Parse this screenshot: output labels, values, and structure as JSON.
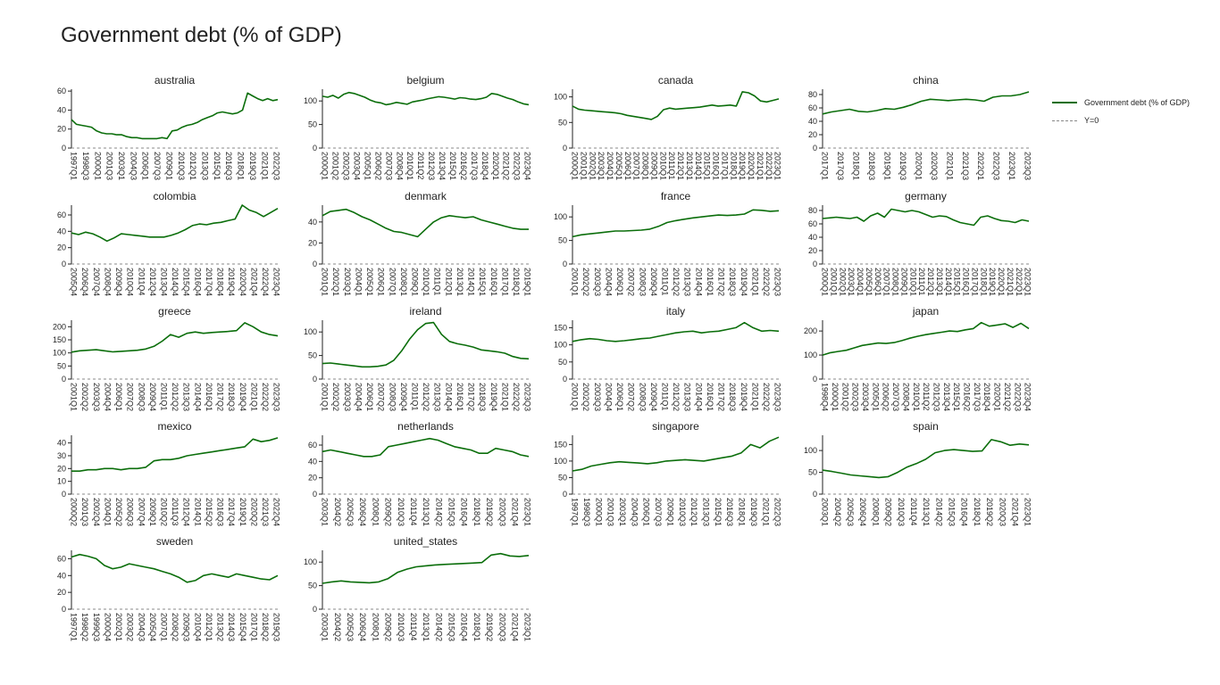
{
  "title": "Government debt (% of GDP)",
  "legend": {
    "series_label": "Government debt (% of GDP)",
    "zero_label": "Y=0"
  },
  "colors": {
    "series": "#0b6e0b",
    "zero_line": "#888888",
    "axis": "#222222"
  },
  "chart_data": {
    "type": "line",
    "layout": "small-multiples",
    "legend_position": "right",
    "grid": false,
    "panels": [
      {
        "name": "australia",
        "yticks": [
          0,
          20,
          40,
          60
        ],
        "ylim": [
          0,
          62
        ],
        "xticks": [
          "1997Q1",
          "1998Q3",
          "2000Q1",
          "2001Q3",
          "2003Q1",
          "2004Q3",
          "2006Q1",
          "2007Q3",
          "2009Q1",
          "2010Q3",
          "2012Q1",
          "2013Q3",
          "2015Q1",
          "2016Q3",
          "2018Q1",
          "2019Q3",
          "2021Q1",
          "2022Q3"
        ],
        "values": [
          30,
          25,
          24,
          23,
          22,
          18,
          16,
          15,
          15,
          14,
          14,
          12,
          11,
          11,
          10,
          10,
          10,
          10,
          11,
          10,
          18,
          19,
          22,
          24,
          25,
          27,
          30,
          32,
          34,
          37,
          38,
          37,
          36,
          37,
          40,
          58,
          55,
          52,
          50,
          52,
          50,
          51
        ]
      },
      {
        "name": "belgium",
        "yticks": [
          0,
          50,
          100
        ],
        "ylim": [
          0,
          125
        ],
        "xticks": [
          "2000Q1",
          "2001Q2",
          "2002Q3",
          "2003Q4",
          "2005Q1",
          "2006Q2",
          "2007Q3",
          "2008Q4",
          "2010Q1",
          "2011Q2",
          "2012Q3",
          "2013Q4",
          "2015Q1",
          "2016Q2",
          "2017Q3",
          "2018Q4",
          "2020Q1",
          "2021Q2",
          "2022Q3",
          "2023Q4"
        ],
        "values": [
          110,
          108,
          112,
          106,
          114,
          118,
          116,
          112,
          108,
          102,
          98,
          96,
          92,
          94,
          97,
          95,
          93,
          98,
          100,
          102,
          105,
          107,
          109,
          108,
          106,
          104,
          107,
          106,
          104,
          103,
          105,
          108,
          116,
          114,
          110,
          106,
          103,
          98,
          94,
          92
        ]
      },
      {
        "name": "canada",
        "yticks": [
          0,
          50,
          100
        ],
        "ylim": [
          0,
          115
        ],
        "xticks": [
          "2000Q1",
          "2001Q1",
          "2002Q1",
          "2003Q1",
          "2004Q1",
          "2005Q1",
          "2006Q1",
          "2007Q1",
          "2008Q1",
          "2009Q1",
          "2010Q1",
          "2011Q1",
          "2012Q1",
          "2013Q1",
          "2014Q1",
          "2015Q1",
          "2016Q1",
          "2017Q1",
          "2018Q1",
          "2019Q1",
          "2020Q1",
          "2021Q1",
          "2022Q1",
          "2023Q1"
        ],
        "values": [
          82,
          76,
          74,
          73,
          72,
          71,
          70,
          69,
          67,
          64,
          62,
          60,
          58,
          56,
          62,
          75,
          78,
          76,
          77,
          78,
          79,
          80,
          82,
          84,
          82,
          83,
          84,
          82,
          110,
          108,
          102,
          92,
          90,
          93,
          96
        ]
      },
      {
        "name": "china",
        "yticks": [
          0,
          20,
          40,
          60,
          80
        ],
        "ylim": [
          0,
          88
        ],
        "xticks": [
          "2017Q1",
          "2017Q3",
          "2018Q1",
          "2018Q3",
          "2019Q1",
          "2019Q3",
          "2020Q1",
          "2020Q3",
          "2021Q1",
          "2021Q3",
          "2022Q1",
          "2022Q3",
          "2023Q1",
          "2023Q3"
        ],
        "values": [
          51,
          54,
          56,
          58,
          55,
          54,
          56,
          59,
          58,
          61,
          65,
          70,
          73,
          72,
          71,
          72,
          73,
          72,
          70,
          76,
          78,
          78,
          80,
          84
        ]
      },
      {
        "name": "colombia",
        "yticks": [
          0,
          20,
          40,
          60
        ],
        "ylim": [
          0,
          72
        ],
        "xticks": [
          "2005Q4",
          "2006Q4",
          "2007Q4",
          "2008Q4",
          "2009Q4",
          "2010Q4",
          "2011Q4",
          "2012Q4",
          "2013Q4",
          "2014Q4",
          "2015Q4",
          "2016Q4",
          "2017Q4",
          "2018Q4",
          "2019Q4",
          "2020Q4",
          "2021Q4",
          "2022Q4",
          "2023Q4"
        ],
        "values": [
          38,
          36,
          39,
          37,
          33,
          28,
          32,
          37,
          36,
          35,
          34,
          33,
          33,
          33,
          35,
          38,
          42,
          47,
          49,
          48,
          50,
          51,
          53,
          55,
          72,
          66,
          63,
          58,
          63,
          68
        ]
      },
      {
        "name": "denmark",
        "yticks": [
          0,
          20,
          40
        ],
        "ylim": [
          0,
          56
        ],
        "xticks": [
          "2001Q1",
          "2002Q1",
          "2003Q1",
          "2004Q1",
          "2005Q1",
          "2006Q1",
          "2007Q1",
          "2008Q1",
          "2009Q1",
          "2010Q1",
          "2011Q1",
          "2012Q1",
          "2013Q1",
          "2014Q1",
          "2015Q1",
          "2016Q1",
          "2017Q1",
          "2018Q1",
          "2019Q1"
        ],
        "values": [
          46,
          50,
          51,
          52,
          49,
          45,
          42,
          38,
          34,
          31,
          30,
          28,
          26,
          33,
          40,
          44,
          46,
          45,
          44,
          45,
          42,
          40,
          38,
          36,
          34,
          33,
          33
        ]
      },
      {
        "name": "france",
        "yticks": [
          0,
          50,
          100
        ],
        "ylim": [
          0,
          125
        ],
        "xticks": [
          "2001Q1",
          "2002Q2",
          "2003Q3",
          "2004Q4",
          "2006Q1",
          "2007Q2",
          "2008Q3",
          "2009Q4",
          "2011Q1",
          "2012Q2",
          "2013Q3",
          "2014Q4",
          "2016Q1",
          "2017Q2",
          "2018Q3",
          "2019Q4",
          "2021Q1",
          "2022Q2",
          "2023Q3"
        ],
        "values": [
          58,
          62,
          64,
          66,
          68,
          70,
          70,
          71,
          72,
          74,
          80,
          88,
          92,
          95,
          98,
          100,
          102,
          104,
          103,
          104,
          106,
          115,
          114,
          112,
          113
        ]
      },
      {
        "name": "germany",
        "yticks": [
          0,
          20,
          40,
          60,
          80
        ],
        "ylim": [
          0,
          88
        ],
        "xticks": [
          "2000Q1",
          "2001Q1",
          "2002Q1",
          "2003Q1",
          "2004Q1",
          "2005Q1",
          "2006Q1",
          "2007Q1",
          "2008Q1",
          "2009Q1",
          "2010Q1",
          "2011Q1",
          "2012Q1",
          "2013Q1",
          "2014Q1",
          "2015Q1",
          "2016Q1",
          "2017Q1",
          "2018Q1",
          "2019Q1",
          "2020Q1",
          "2021Q1",
          "2022Q1",
          "2023Q1"
        ],
        "values": [
          68,
          69,
          70,
          69,
          68,
          70,
          64,
          72,
          76,
          70,
          82,
          80,
          78,
          80,
          78,
          74,
          70,
          72,
          71,
          66,
          62,
          60,
          58,
          70,
          72,
          68,
          65,
          64,
          62,
          66,
          64
        ]
      },
      {
        "name": "greece",
        "yticks": [
          0,
          50,
          100,
          150,
          200
        ],
        "ylim": [
          0,
          225
        ],
        "xticks": [
          "2001Q1",
          "2002Q2",
          "2003Q3",
          "2004Q4",
          "2006Q1",
          "2007Q2",
          "2008Q3",
          "2009Q4",
          "2011Q1",
          "2012Q2",
          "2013Q3",
          "2014Q4",
          "2016Q1",
          "2017Q2",
          "2018Q3",
          "2019Q4",
          "2021Q1",
          "2022Q2",
          "2023Q3"
        ],
        "values": [
          103,
          108,
          110,
          112,
          108,
          104,
          106,
          108,
          110,
          115,
          125,
          145,
          170,
          160,
          175,
          180,
          175,
          178,
          180,
          182,
          185,
          215,
          200,
          180,
          170,
          165
        ]
      },
      {
        "name": "ireland",
        "yticks": [
          0,
          50,
          100
        ],
        "ylim": [
          0,
          125
        ],
        "xticks": [
          "2001Q1",
          "2002Q2",
          "2003Q3",
          "2004Q4",
          "2006Q1",
          "2007Q2",
          "2008Q3",
          "2009Q4",
          "2011Q1",
          "2012Q2",
          "2013Q3",
          "2014Q4",
          "2016Q1",
          "2017Q2",
          "2018Q3",
          "2019Q4",
          "2021Q1",
          "2022Q2",
          "2023Q3"
        ],
        "values": [
          33,
          34,
          32,
          30,
          28,
          26,
          26,
          27,
          30,
          40,
          60,
          85,
          105,
          118,
          120,
          95,
          80,
          75,
          72,
          68,
          62,
          60,
          58,
          55,
          48,
          44,
          43
        ]
      },
      {
        "name": "italy",
        "yticks": [
          0,
          50,
          100,
          150
        ],
        "ylim": [
          0,
          172
        ],
        "xticks": [
          "2001Q1",
          "2002Q2",
          "2003Q3",
          "2004Q4",
          "2006Q1",
          "2007Q2",
          "2008Q3",
          "2009Q4",
          "2011Q1",
          "2012Q2",
          "2013Q3",
          "2014Q4",
          "2016Q1",
          "2017Q2",
          "2018Q3",
          "2019Q4",
          "2021Q1",
          "2022Q2",
          "2023Q3"
        ],
        "values": [
          110,
          115,
          118,
          116,
          112,
          110,
          112,
          115,
          118,
          120,
          125,
          130,
          135,
          138,
          140,
          135,
          138,
          140,
          145,
          150,
          165,
          150,
          140,
          142,
          140
        ]
      },
      {
        "name": "japan",
        "yticks": [
          0,
          100,
          200
        ],
        "ylim": [
          0,
          245
        ],
        "xticks": [
          "1998Q4",
          "2000Q1",
          "2001Q2",
          "2002Q3",
          "2003Q4",
          "2005Q1",
          "2006Q2",
          "2007Q3",
          "2008Q4",
          "2010Q1",
          "2011Q2",
          "2012Q3",
          "2013Q4",
          "2015Q1",
          "2016Q2",
          "2017Q3",
          "2018Q4",
          "2020Q1",
          "2021Q2",
          "2022Q3",
          "2023Q4"
        ],
        "values": [
          100,
          110,
          115,
          120,
          130,
          140,
          145,
          150,
          148,
          152,
          160,
          170,
          178,
          185,
          190,
          195,
          200,
          198,
          205,
          210,
          235,
          220,
          225,
          230,
          215,
          232,
          210
        ]
      },
      {
        "name": "mexico",
        "yticks": [
          0,
          10,
          20,
          30,
          40
        ],
        "ylim": [
          0,
          46
        ],
        "xticks": [
          "2000Q2",
          "2001Q3",
          "2002Q4",
          "2004Q1",
          "2005Q2",
          "2006Q3",
          "2007Q4",
          "2009Q1",
          "2010Q2",
          "2011Q3",
          "2012Q4",
          "2014Q1",
          "2015Q2",
          "2016Q3",
          "2017Q4",
          "2019Q1",
          "2020Q2",
          "2021Q3",
          "2022Q4"
        ],
        "values": [
          18,
          18,
          19,
          19,
          20,
          20,
          19,
          20,
          20,
          21,
          26,
          27,
          27,
          28,
          30,
          31,
          32,
          33,
          34,
          35,
          36,
          37,
          43,
          41,
          42,
          44
        ]
      },
      {
        "name": "netherlands",
        "yticks": [
          0,
          20,
          40,
          60
        ],
        "ylim": [
          0,
          72
        ],
        "xticks": [
          "2003Q1",
          "2004Q2",
          "2005Q3",
          "2006Q4",
          "2008Q1",
          "2009Q2",
          "2010Q3",
          "2011Q4",
          "2013Q1",
          "2014Q2",
          "2015Q3",
          "2016Q4",
          "2018Q1",
          "2019Q2",
          "2020Q3",
          "2021Q4",
          "2023Q1"
        ],
        "values": [
          52,
          54,
          52,
          50,
          48,
          46,
          46,
          48,
          58,
          60,
          62,
          64,
          66,
          68,
          66,
          62,
          58,
          56,
          54,
          50,
          50,
          56,
          54,
          52,
          48,
          46
        ]
      },
      {
        "name": "singapore",
        "yticks": [
          0,
          50,
          100,
          150
        ],
        "ylim": [
          0,
          178
        ],
        "xticks": [
          "1997Q1",
          "1998Q3",
          "2000Q1",
          "2001Q3",
          "2003Q1",
          "2004Q3",
          "2006Q1",
          "2007Q3",
          "2009Q1",
          "2010Q3",
          "2012Q1",
          "2013Q3",
          "2015Q1",
          "2016Q3",
          "2018Q1",
          "2019Q3",
          "2021Q1",
          "2022Q3"
        ],
        "values": [
          70,
          75,
          85,
          90,
          95,
          98,
          96,
          94,
          92,
          95,
          100,
          102,
          104,
          102,
          100,
          105,
          110,
          115,
          125,
          150,
          140,
          160,
          172
        ]
      },
      {
        "name": "spain",
        "yticks": [
          0,
          50,
          100
        ],
        "ylim": [
          0,
          135
        ],
        "xticks": [
          "2003Q1",
          "2004Q2",
          "2005Q3",
          "2006Q4",
          "2008Q1",
          "2009Q2",
          "2010Q3",
          "2011Q4",
          "2013Q1",
          "2014Q2",
          "2015Q3",
          "2016Q4",
          "2018Q1",
          "2019Q2",
          "2020Q3",
          "2021Q4",
          "2023Q1"
        ],
        "values": [
          55,
          52,
          48,
          44,
          42,
          40,
          38,
          40,
          50,
          62,
          70,
          80,
          95,
          100,
          102,
          100,
          98,
          99,
          125,
          120,
          112,
          115,
          113
        ]
      },
      {
        "name": "sweden",
        "yticks": [
          0,
          20,
          40,
          60
        ],
        "ylim": [
          0,
          70
        ],
        "xticks": [
          "1997Q1",
          "1998Q2",
          "1999Q3",
          "2000Q4",
          "2002Q1",
          "2003Q2",
          "2004Q3",
          "2005Q4",
          "2007Q1",
          "2008Q2",
          "2009Q3",
          "2010Q4",
          "2012Q1",
          "2013Q2",
          "2014Q3",
          "2015Q4",
          "2017Q1",
          "2018Q2",
          "2019Q3"
        ],
        "values": [
          62,
          65,
          63,
          60,
          52,
          48,
          50,
          54,
          52,
          50,
          48,
          45,
          42,
          38,
          32,
          34,
          40,
          42,
          40,
          38,
          42,
          40,
          38,
          36,
          35,
          40
        ]
      },
      {
        "name": "united_states",
        "yticks": [
          0,
          50,
          100
        ],
        "ylim": [
          0,
          125
        ],
        "xticks": [
          "2003Q1",
          "2004Q2",
          "2005Q3",
          "2006Q4",
          "2008Q1",
          "2009Q2",
          "2010Q3",
          "2011Q4",
          "2013Q1",
          "2014Q2",
          "2015Q3",
          "2016Q4",
          "2018Q1",
          "2019Q2",
          "2020Q3",
          "2021Q4",
          "2023Q1"
        ],
        "values": [
          55,
          58,
          60,
          58,
          57,
          56,
          58,
          65,
          78,
          85,
          90,
          92,
          94,
          95,
          96,
          97,
          98,
          99,
          115,
          118,
          113,
          112,
          114
        ]
      }
    ]
  }
}
